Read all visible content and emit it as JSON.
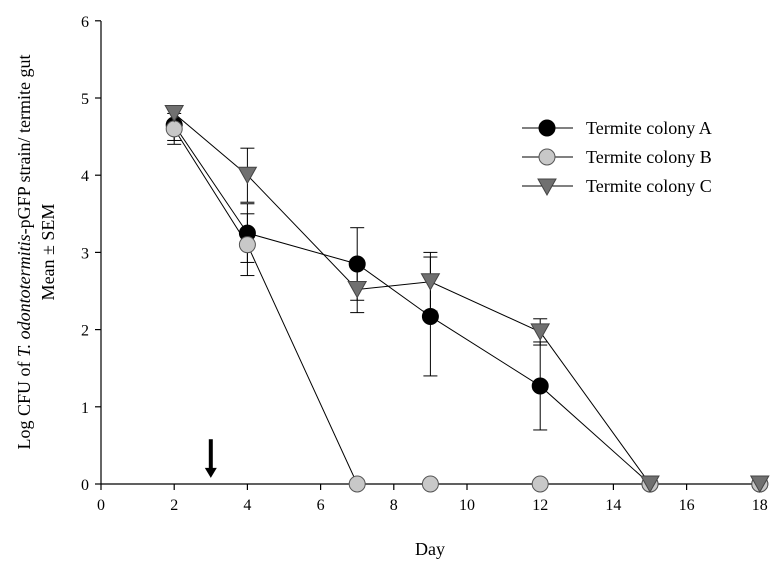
{
  "chart_data": {
    "type": "line",
    "title": "",
    "xlabel": "Day",
    "ylabel": {
      "line1_prefix": "Log CFU of ",
      "line1_italic": "T. odontotermitis",
      "line1_suffix": "-pGFP strain/ termite gut",
      "line2": "Mean ± SEM"
    },
    "xlim": [
      0,
      18
    ],
    "ylim": [
      0,
      6
    ],
    "xticks": [
      "0",
      "2",
      "4",
      "6",
      "8",
      "10",
      "12",
      "14",
      "16",
      "18"
    ],
    "yticks": [
      "0",
      "1",
      "2",
      "3",
      "4",
      "5",
      "6"
    ],
    "grid": false,
    "legend_position": "top-right",
    "annotation": {
      "type": "down-arrow",
      "x": 3,
      "y_top": 0.58,
      "y_bottom": 0.08
    },
    "series": [
      {
        "name": "Termite colony A",
        "marker": "circle",
        "color": "#000000",
        "x": [
          2,
          4,
          7,
          9,
          12,
          15,
          18
        ],
        "y": [
          4.65,
          3.25,
          2.85,
          2.17,
          1.27,
          0,
          0
        ],
        "err": [
          0.2,
          0.38,
          0.47,
          0.77,
          0.57,
          0,
          0
        ]
      },
      {
        "name": "Termite colony B",
        "marker": "circle",
        "color": "#c8c8c8",
        "x": [
          2,
          4,
          7,
          9,
          12,
          15,
          18
        ],
        "y": [
          4.6,
          3.1,
          0,
          0,
          0,
          0,
          0
        ],
        "err": [
          0.2,
          0.4,
          0,
          0,
          0,
          0,
          0
        ]
      },
      {
        "name": "Termite colony C",
        "marker": "triangle-down",
        "color": "#707070",
        "x": [
          2,
          4,
          7,
          9,
          12,
          15,
          18
        ],
        "y": [
          4.8,
          4.0,
          2.52,
          2.62,
          1.97,
          0,
          0
        ],
        "err": [
          0.1,
          0.35,
          0.3,
          0.38,
          0.17,
          0,
          0
        ]
      }
    ]
  }
}
